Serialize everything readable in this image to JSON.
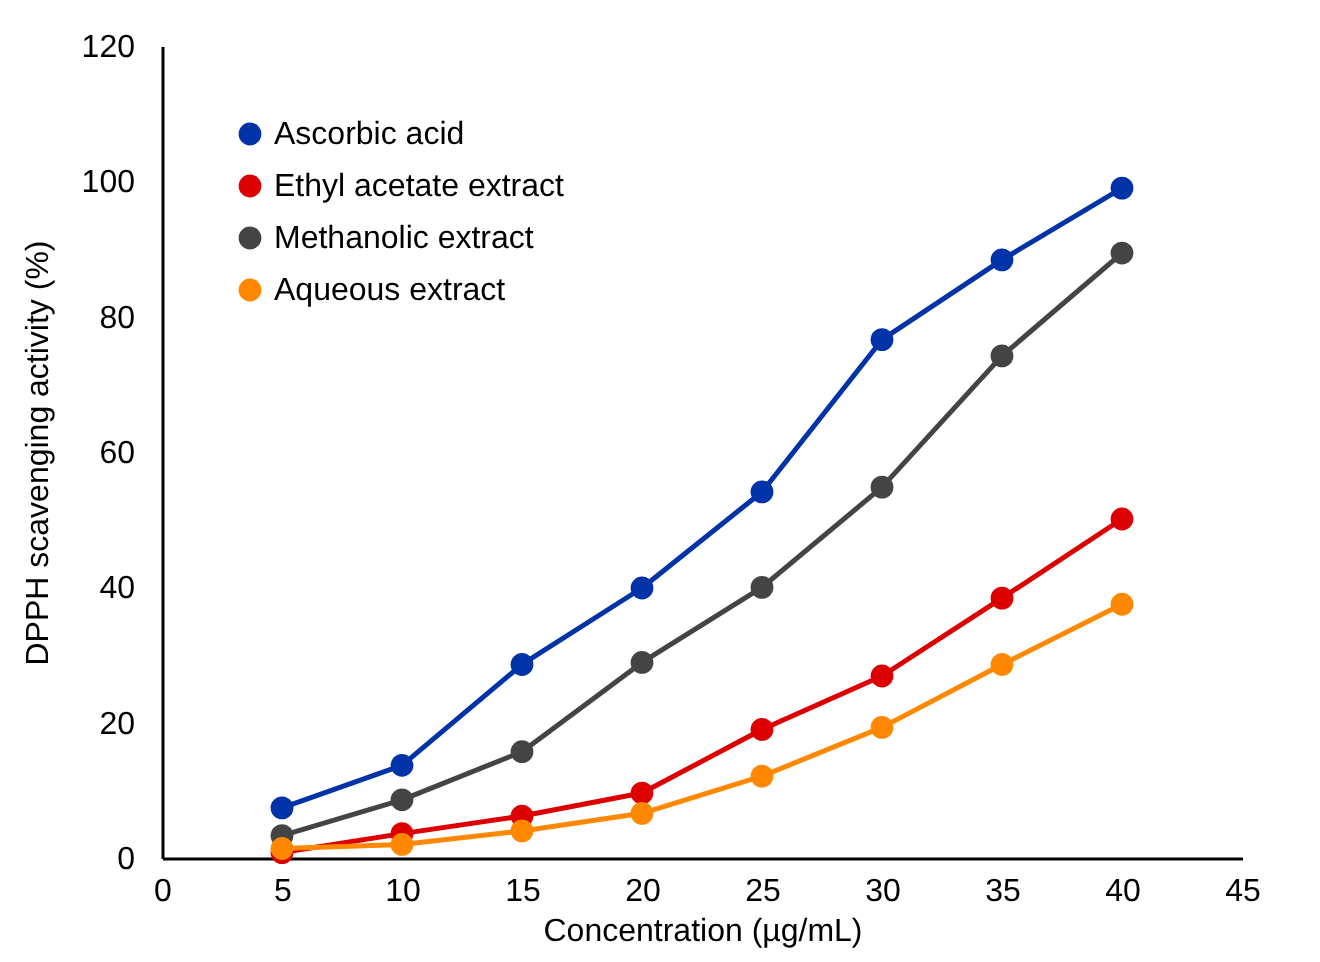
{
  "chart_data": {
    "type": "line",
    "xlabel": "Concentration (µg/mL)",
    "ylabel": "DPPH scavenging activity (%)",
    "x": [
      5,
      10,
      15,
      20,
      25,
      30,
      35,
      40
    ],
    "series": [
      {
        "name": "Ascorbic acid",
        "color": "#0033a8",
        "values": [
          7.4,
          13.7,
          28.6,
          39.9,
          54.1,
          76.6,
          88.4,
          99
        ]
      },
      {
        "name": "Ethyl acetate extract",
        "color": "#dd0000",
        "values": [
          0.8,
          3.6,
          6.2,
          9.6,
          19,
          26.9,
          38.4,
          50.1
        ]
      },
      {
        "name": "Methanolic extract",
        "color": "#444444",
        "values": [
          3.3,
          8.6,
          15.7,
          28.9,
          40,
          54.8,
          74.2,
          89.4
        ]
      },
      {
        "name": "Aqueous extract",
        "color": "#ff8800",
        "values": [
          1.4,
          2,
          4,
          6.6,
          12.1,
          19.3,
          28.6,
          37.5
        ]
      }
    ],
    "xlim": [
      0,
      45
    ],
    "xticks": [
      0,
      5,
      10,
      15,
      20,
      25,
      30,
      35,
      40,
      45
    ],
    "ylim": [
      0,
      120
    ],
    "yticks": [
      0,
      20,
      40,
      60,
      80,
      100,
      120
    ],
    "grid": false,
    "legend": "top left",
    "marker": "circle",
    "line_style": "solid"
  }
}
